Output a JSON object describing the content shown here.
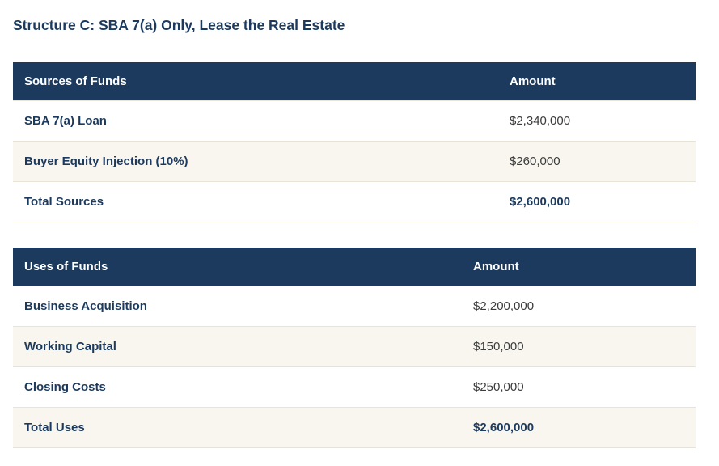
{
  "page_title": "Structure C: SBA 7(a) Only, Lease the Real Estate",
  "colors": {
    "header_bg": "#1c3a5e",
    "header_text": "#ffffff",
    "title_text": "#1c3a5e",
    "label_text": "#1c3a5e",
    "amount_text": "#3b3b3b",
    "stripe_bg": "#f8f6ef",
    "row_border": "#e7e3d6",
    "page_bg": "#ffffff"
  },
  "tables": [
    {
      "name": "sources-of-funds",
      "headers": {
        "label": "Sources of Funds",
        "amount": "Amount"
      },
      "rows": [
        {
          "label": "SBA 7(a) Loan",
          "amount": "$2,340,000"
        },
        {
          "label": "Buyer Equity Injection (10%)",
          "amount": "$260,000"
        },
        {
          "label": "Total Sources",
          "amount": "$2,600,000"
        }
      ]
    },
    {
      "name": "uses-of-funds",
      "headers": {
        "label": "Uses of Funds",
        "amount": "Amount"
      },
      "rows": [
        {
          "label": "Business Acquisition",
          "amount": "$2,200,000"
        },
        {
          "label": "Working Capital",
          "amount": "$150,000"
        },
        {
          "label": "Closing Costs",
          "amount": "$250,000"
        },
        {
          "label": "Total Uses",
          "amount": "$2,600,000"
        }
      ]
    }
  ]
}
